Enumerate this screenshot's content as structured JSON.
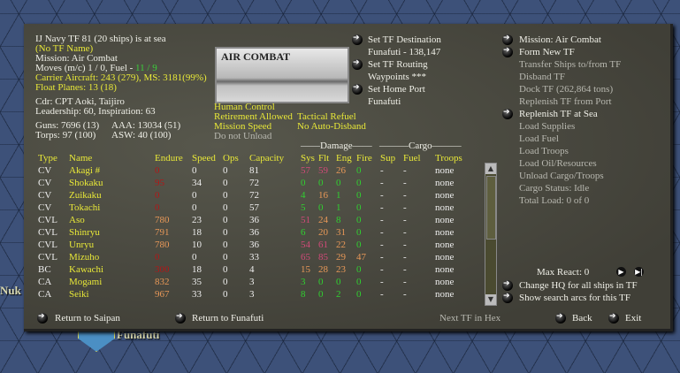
{
  "map": {
    "labels": [
      "Nuk",
      "Funafuti"
    ]
  },
  "tf": {
    "title": "IJ Navy TF 81 (20 ships) is at sea",
    "name": "(No TF Name)",
    "mission": "Mission:  Air Combat",
    "moves_label": "Moves (m/c)  1 / 0, Fuel - ",
    "fuel": "11 / 9",
    "carrier_aircraft": "Carrier Aircraft: 243 (279),  MS: 3181(99%)",
    "float_planes": "Float Planes: 13 (18)",
    "commander": "Cdr: CPT  Aoki, Taijiro",
    "leadership": "Leadership: 60, Inspiration: 63",
    "guns": "Guns: 7696 (13)",
    "aaa": "AAA: 13034 (51)",
    "torps": "Torps: 97 (100)",
    "asw": "ASW: 40 (100)"
  },
  "photo_label": "AIR COMBAT",
  "settings": {
    "human_control": "Human Control",
    "retirement": "Retirement Allowed",
    "mission_speed": "Mission Speed",
    "do_not_unload": "Do not Unload",
    "tactical_refuel": "Tactical Refuel",
    "auto_disband": "No Auto-Disband"
  },
  "nav": {
    "set_destination": "Set TF Destination",
    "destination": "Funafuti - 138,147",
    "set_routing": "Set TF Routing",
    "waypoints": "Waypoints ***",
    "set_home": "Set Home Port",
    "home": "Funafuti"
  },
  "actions": {
    "mission": "Mission: Air Combat",
    "form_new": "Form New TF",
    "transfer": "Transfer Ships to/from TF",
    "disband": "Disband TF",
    "dock": "Dock TF (262,864 tons)",
    "replenish_port": "Replenish TF from Port",
    "replenish_sea": "Replenish TF at Sea",
    "load_supplies": "Load Supplies",
    "load_fuel": "Load Fuel",
    "load_troops": "Load Troops",
    "load_oil": "Load Oil/Resources",
    "unload": "Unload Cargo/Troops",
    "cargo_status": "Cargo Status: Idle",
    "total_load": "Total Load: 0 of 0"
  },
  "table": {
    "group_damage": "——Damage——",
    "group_cargo": "———Cargo———",
    "headers": [
      "Type",
      "Name",
      "Endure",
      "Speed",
      "Ops",
      "Capacity",
      "Sys",
      "Flt",
      "Eng",
      "Fire",
      "Sup",
      "Fuel",
      "Troops"
    ],
    "rows": [
      {
        "type": "CV",
        "name": "Akagi #",
        "endure": {
          "v": "0",
          "c": "red"
        },
        "speed": "0",
        "ops": "0",
        "capacity": "81",
        "sys": {
          "v": "57",
          "c": "pink"
        },
        "flt": {
          "v": "59",
          "c": "pink"
        },
        "eng": {
          "v": "26",
          "c": "orange"
        },
        "fire": {
          "v": "0",
          "c": "green"
        },
        "sup": "-",
        "fuel": "-",
        "troops": "none"
      },
      {
        "type": "CV",
        "name": "Shokaku",
        "endure": {
          "v": "95",
          "c": "red"
        },
        "speed": "34",
        "ops": "0",
        "capacity": "72",
        "sys": {
          "v": "0",
          "c": "green"
        },
        "flt": {
          "v": "0",
          "c": "green"
        },
        "eng": {
          "v": "0",
          "c": "green"
        },
        "fire": {
          "v": "0",
          "c": "green"
        },
        "sup": "-",
        "fuel": "-",
        "troops": "none"
      },
      {
        "type": "CV",
        "name": "Zuikaku",
        "endure": {
          "v": "0",
          "c": "red"
        },
        "speed": "0",
        "ops": "0",
        "capacity": "72",
        "sys": {
          "v": "4",
          "c": "green"
        },
        "flt": {
          "v": "16",
          "c": "orange"
        },
        "eng": {
          "v": "1",
          "c": "green"
        },
        "fire": {
          "v": "0",
          "c": "green"
        },
        "sup": "-",
        "fuel": "-",
        "troops": "none"
      },
      {
        "type": "CV",
        "name": "Tokachi",
        "endure": {
          "v": "0",
          "c": "red"
        },
        "speed": "0",
        "ops": "0",
        "capacity": "57",
        "sys": {
          "v": "5",
          "c": "green"
        },
        "flt": {
          "v": "0",
          "c": "green"
        },
        "eng": {
          "v": "1",
          "c": "green"
        },
        "fire": {
          "v": "0",
          "c": "green"
        },
        "sup": "-",
        "fuel": "-",
        "troops": "none"
      },
      {
        "type": "CVL",
        "name": "Aso",
        "endure": {
          "v": "780",
          "c": "orange"
        },
        "speed": "23",
        "ops": "0",
        "capacity": "36",
        "sys": {
          "v": "51",
          "c": "pink"
        },
        "flt": {
          "v": "24",
          "c": "orange"
        },
        "eng": {
          "v": "8",
          "c": "green"
        },
        "fire": {
          "v": "0",
          "c": "green"
        },
        "sup": "-",
        "fuel": "-",
        "troops": "none"
      },
      {
        "type": "CVL",
        "name": "Shinryu",
        "endure": {
          "v": "791",
          "c": "orange"
        },
        "speed": "18",
        "ops": "0",
        "capacity": "36",
        "sys": {
          "v": "6",
          "c": "green"
        },
        "flt": {
          "v": "20",
          "c": "orange"
        },
        "eng": {
          "v": "31",
          "c": "orange"
        },
        "fire": {
          "v": "0",
          "c": "green"
        },
        "sup": "-",
        "fuel": "-",
        "troops": "none"
      },
      {
        "type": "CVL",
        "name": "Unryu",
        "endure": {
          "v": "780",
          "c": "orange"
        },
        "speed": "10",
        "ops": "0",
        "capacity": "36",
        "sys": {
          "v": "54",
          "c": "pink"
        },
        "flt": {
          "v": "61",
          "c": "pink"
        },
        "eng": {
          "v": "22",
          "c": "orange"
        },
        "fire": {
          "v": "0",
          "c": "green"
        },
        "sup": "-",
        "fuel": "-",
        "troops": "none"
      },
      {
        "type": "CVL",
        "name": "Mizuho",
        "endure": {
          "v": "0",
          "c": "red"
        },
        "speed": "0",
        "ops": "0",
        "capacity": "33",
        "sys": {
          "v": "65",
          "c": "pink"
        },
        "flt": {
          "v": "85",
          "c": "pink"
        },
        "eng": {
          "v": "29",
          "c": "orange"
        },
        "fire": {
          "v": "47",
          "c": "orange"
        },
        "sup": "-",
        "fuel": "-",
        "troops": "none"
      },
      {
        "type": "BC",
        "name": "Kawachi",
        "endure": {
          "v": "300",
          "c": "red"
        },
        "speed": "18",
        "ops": "0",
        "capacity": "4",
        "sys": {
          "v": "15",
          "c": "orange"
        },
        "flt": {
          "v": "28",
          "c": "orange"
        },
        "eng": {
          "v": "23",
          "c": "orange"
        },
        "fire": {
          "v": "0",
          "c": "green"
        },
        "sup": "-",
        "fuel": "-",
        "troops": "none"
      },
      {
        "type": "CA",
        "name": "Mogami",
        "endure": {
          "v": "832",
          "c": "orange"
        },
        "speed": "35",
        "ops": "0",
        "capacity": "3",
        "sys": {
          "v": "3",
          "c": "green"
        },
        "flt": {
          "v": "0",
          "c": "green"
        },
        "eng": {
          "v": "0",
          "c": "green"
        },
        "fire": {
          "v": "0",
          "c": "green"
        },
        "sup": "-",
        "fuel": "-",
        "troops": "none"
      },
      {
        "type": "CA",
        "name": "Seiki",
        "endure": {
          "v": "967",
          "c": "orange"
        },
        "speed": "33",
        "ops": "0",
        "capacity": "3",
        "sys": {
          "v": "8",
          "c": "green"
        },
        "flt": {
          "v": "0",
          "c": "green"
        },
        "eng": {
          "v": "2",
          "c": "green"
        },
        "fire": {
          "v": "0",
          "c": "green"
        },
        "sup": "-",
        "fuel": "-",
        "troops": "none"
      }
    ]
  },
  "footer": {
    "max_react": "Max React: 0",
    "change_hq": "Change HQ for all ships in TF",
    "search_arcs": "Show search arcs for this TF",
    "return_saipan": "Return to Saipan",
    "return_funafuti": "Return to Funafuti",
    "next_tf": "Next TF in Hex",
    "back": "Back",
    "exit": "Exit"
  }
}
